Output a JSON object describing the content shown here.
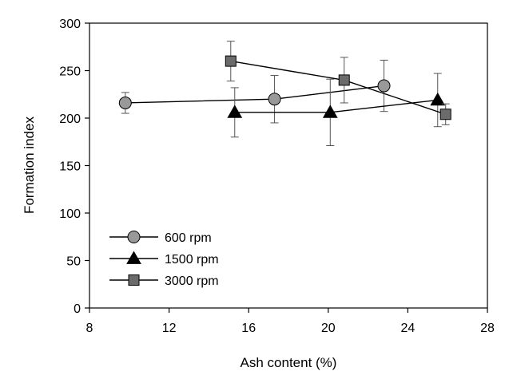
{
  "chart_data": {
    "type": "line",
    "xlabel": "Ash content (%)",
    "ylabel": "Formation index",
    "xlim": [
      8,
      28
    ],
    "ylim": [
      0,
      300
    ],
    "xticks": [
      8,
      12,
      16,
      20,
      24,
      28
    ],
    "yticks": [
      0,
      50,
      100,
      150,
      200,
      250,
      300
    ],
    "grid": false,
    "legend_position": "bottom-left",
    "series": [
      {
        "name": "600 rpm",
        "marker": "circle",
        "color": "#999999",
        "points": [
          {
            "x": 9.8,
            "y": 216,
            "err": 11
          },
          {
            "x": 17.3,
            "y": 220,
            "err": 25
          },
          {
            "x": 22.8,
            "y": 234,
            "err": 27
          }
        ]
      },
      {
        "name": "1500 rpm",
        "marker": "triangle",
        "color": "#000000",
        "points": [
          {
            "x": 15.3,
            "y": 206,
            "err": 26
          },
          {
            "x": 20.1,
            "y": 206,
            "err": 35
          },
          {
            "x": 25.5,
            "y": 219,
            "err": 28
          }
        ]
      },
      {
        "name": "3000 rpm",
        "marker": "square",
        "color": "#6b6b6b",
        "points": [
          {
            "x": 15.1,
            "y": 260,
            "err": 21
          },
          {
            "x": 20.8,
            "y": 240,
            "err": 24
          },
          {
            "x": 25.9,
            "y": 204,
            "err": 11
          }
        ]
      }
    ]
  }
}
